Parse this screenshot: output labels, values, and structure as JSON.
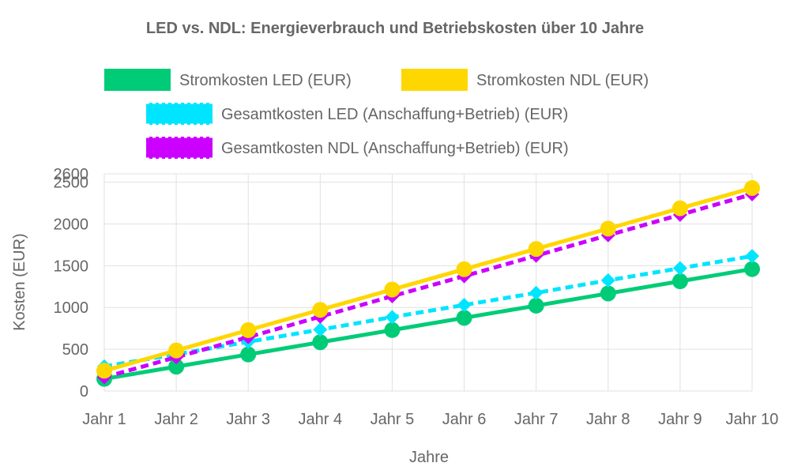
{
  "chart_data": {
    "type": "line",
    "title": "LED vs. NDL: Energieverbrauch und Betriebskosten über 10 Jahre",
    "xlabel": "Jahre",
    "ylabel": "Kosten (EUR)",
    "categories": [
      "Jahr 1",
      "Jahr 2",
      "Jahr 3",
      "Jahr 4",
      "Jahr 5",
      "Jahr 6",
      "Jahr 7",
      "Jahr 8",
      "Jahr 9",
      "Jahr 10"
    ],
    "ylim": [
      0,
      2600
    ],
    "yticks": [
      0,
      500,
      1000,
      1500,
      2000,
      2500,
      2600
    ],
    "grid": true,
    "legend_position": "top",
    "series": [
      {
        "name": "Stromkosten LED (EUR)",
        "values": [
          146,
          292,
          438,
          584,
          730,
          876,
          1022,
          1168,
          1314,
          1460
        ],
        "color": "#00cc77",
        "line_style": "solid",
        "marker": "circle"
      },
      {
        "name": "Stromkosten NDL (EUR)",
        "values": [
          243,
          486,
          729,
          972,
          1215,
          1458,
          1701,
          1944,
          2187,
          2430
        ],
        "color": "#ffd700",
        "line_style": "solid",
        "marker": "circle"
      },
      {
        "name": "Gesamtkosten LED (Anschaffung+Betrieb) (EUR)",
        "values": [
          295,
          440,
          590,
          735,
          885,
          1030,
          1175,
          1325,
          1470,
          1615
        ],
        "color": "#00e5ff",
        "line_style": "dashed",
        "marker": "diamond"
      },
      {
        "name": "Gesamtkosten NDL (Anschaffung+Betrieb) (EUR)",
        "values": [
          165,
          405,
          645,
          890,
          1135,
          1375,
          1620,
          1865,
          2110,
          2355
        ],
        "color": "#cc00ff",
        "line_style": "dashed",
        "marker": "diamond"
      }
    ]
  }
}
